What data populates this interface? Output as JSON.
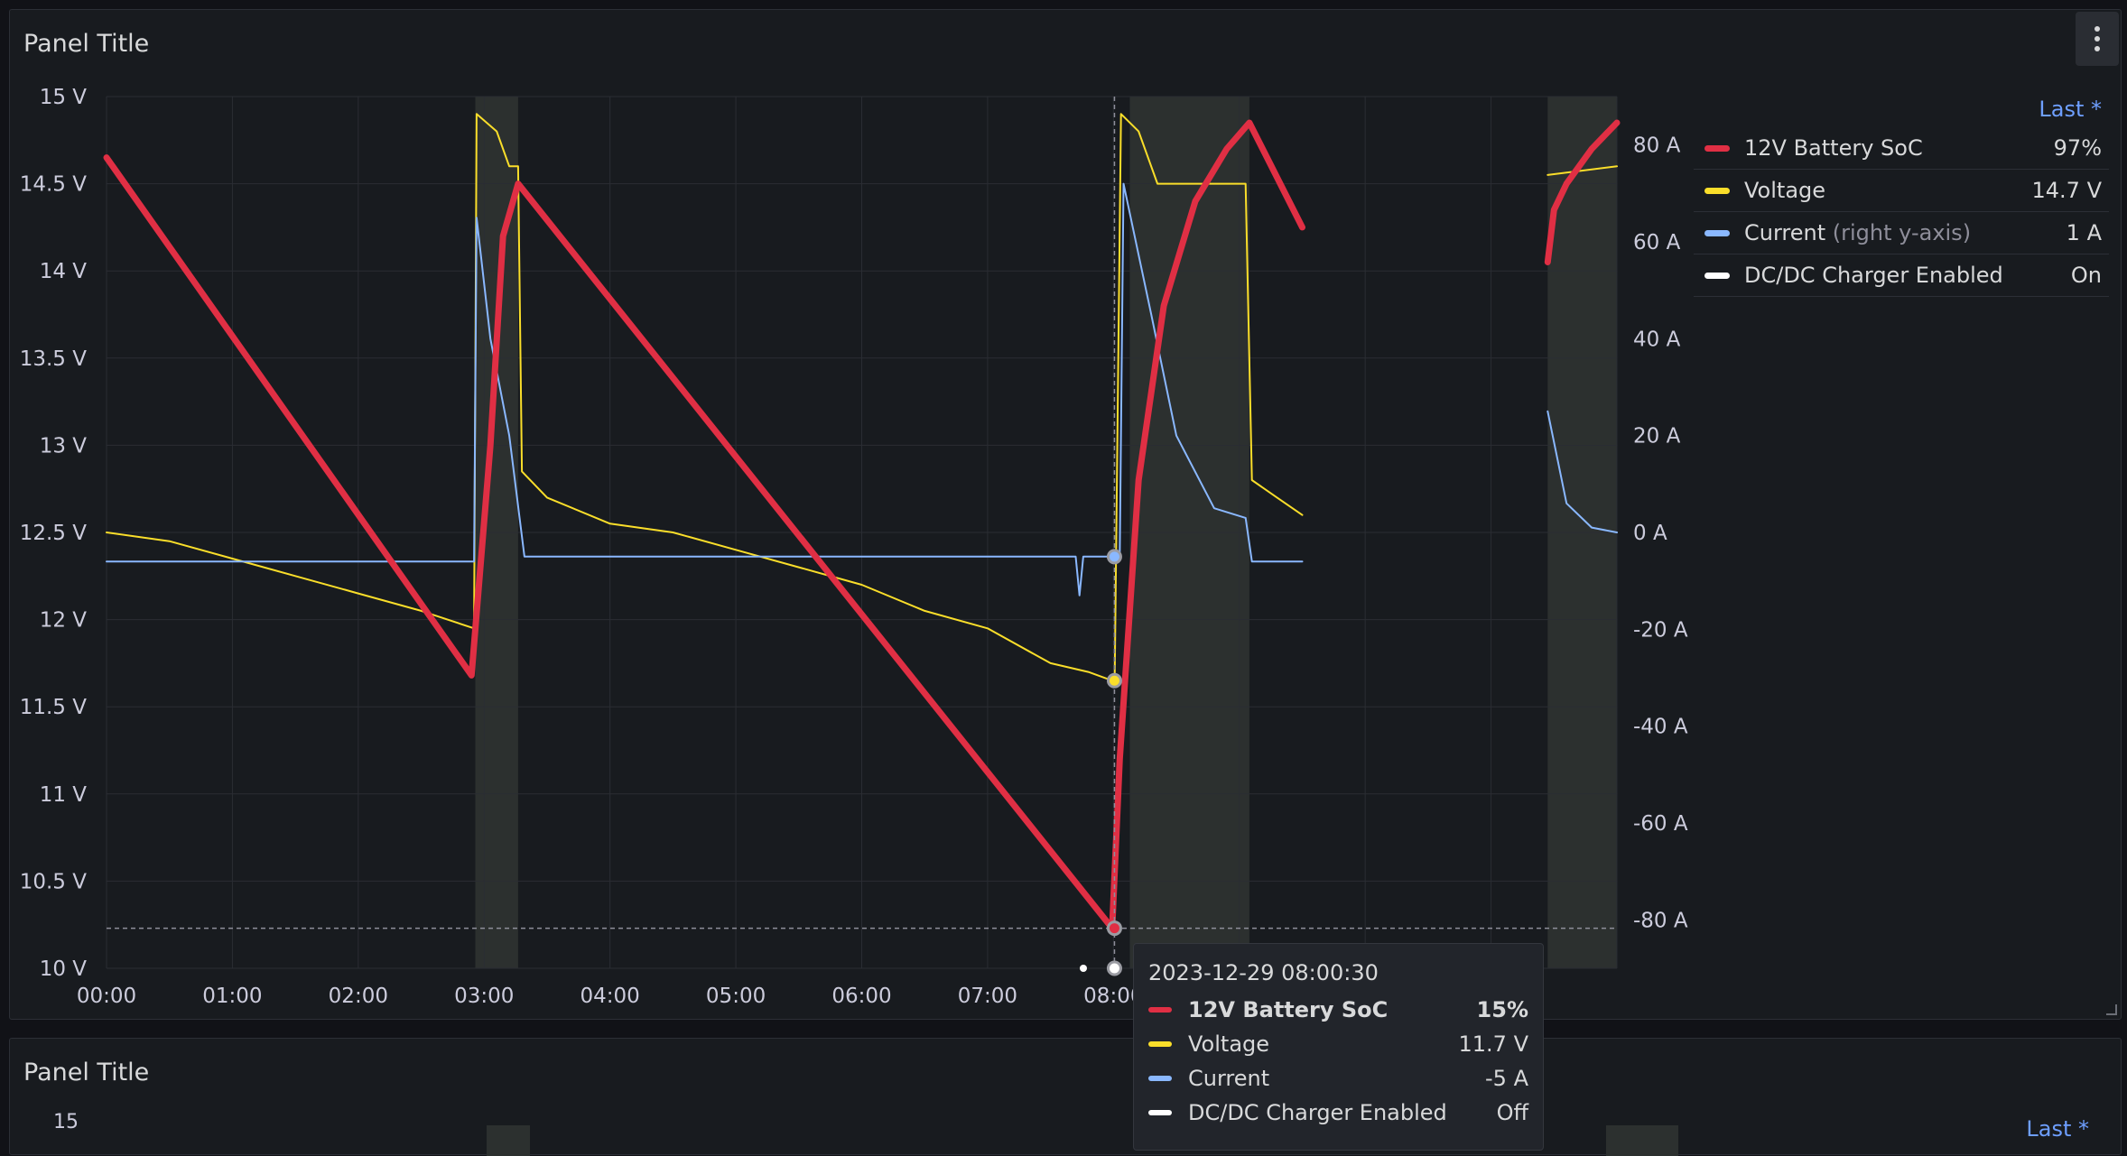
{
  "panels": [
    {
      "title": "Panel Title",
      "legend": {
        "header": "Last *",
        "items": [
          {
            "name": "12V Battery SoC",
            "note": "",
            "value": "97%",
            "color": "#e02f44"
          },
          {
            "name": "Voltage",
            "note": "",
            "value": "14.7 V",
            "color": "#fade2a"
          },
          {
            "name": "Current",
            "note": "(right y-axis)",
            "value": "1 A",
            "color": "#8ab8ff"
          },
          {
            "name": "DC/DC Charger Enabled",
            "note": "",
            "value": "On",
            "color": "#ffffff"
          }
        ]
      },
      "tooltip": {
        "time": "2023-12-29 08:00:30",
        "rows": [
          {
            "name": "12V Battery SoC",
            "value": "15%",
            "bold": true
          },
          {
            "name": "Voltage",
            "value": "11.7 V",
            "bold": false
          },
          {
            "name": "Current",
            "value": "-5 A",
            "bold": false
          },
          {
            "name": "DC/DC Charger Enabled",
            "value": "Off",
            "bold": false
          }
        ]
      }
    },
    {
      "title": "Panel Title",
      "first_tick": "15",
      "legend_header": "Last *"
    }
  ],
  "chart_data": {
    "type": "line",
    "x_ticks": [
      "00:00",
      "01:00",
      "02:00",
      "03:00",
      "04:00",
      "05:00",
      "06:00",
      "07:00",
      "08:00"
    ],
    "x_range_hours": [
      0,
      12
    ],
    "y_left": {
      "unit": "V",
      "range": [
        10,
        15
      ],
      "ticks": [
        "10 V",
        "10.5 V",
        "11 V",
        "11.5 V",
        "12 V",
        "12.5 V",
        "13 V",
        "13.5 V",
        "14 V",
        "14.5 V",
        "15 V"
      ]
    },
    "y_right": {
      "unit": "A",
      "range": [
        -90,
        90
      ],
      "ticks": [
        "-80 A",
        "-60 A",
        "-40 A",
        "-20 A",
        "0 A",
        "20 A",
        "40 A",
        "60 A",
        "80 A"
      ]
    },
    "charger_enabled_hours": [
      [
        2.93,
        3.27
      ],
      [
        8.13,
        9.08
      ],
      [
        11.45,
        12
      ]
    ],
    "cursor_hour": 8.008,
    "series": [
      {
        "name": "12V Battery SoC",
        "axis": "left_scaled",
        "color": "#e02f44",
        "segments": [
          [
            [
              0,
              14.65
            ],
            [
              2.9,
              11.68
            ],
            [
              3.05,
              13.0
            ],
            [
              3.15,
              14.2
            ],
            [
              3.27,
              14.5
            ],
            [
              7.99,
              10.23
            ],
            [
              8.05,
              11.2
            ],
            [
              8.2,
              12.8
            ],
            [
              8.4,
              13.8
            ],
            [
              8.65,
              14.4
            ],
            [
              8.9,
              14.7
            ],
            [
              9.08,
              14.85
            ],
            [
              9.5,
              14.25
            ]
          ],
          [
            [
              11.45,
              14.05
            ],
            [
              11.5,
              14.35
            ],
            [
              11.6,
              14.5
            ],
            [
              11.8,
              14.7
            ],
            [
              12,
              14.85
            ]
          ]
        ]
      },
      {
        "name": "Voltage",
        "axis": "left",
        "color": "#fade2a",
        "segments": [
          [
            [
              0,
              12.5
            ],
            [
              0.5,
              12.45
            ],
            [
              1,
              12.35
            ],
            [
              1.5,
              12.25
            ],
            [
              2,
              12.15
            ],
            [
              2.5,
              12.05
            ],
            [
              2.92,
              11.95
            ],
            [
              2.94,
              14.9
            ],
            [
              3.1,
              14.8
            ],
            [
              3.2,
              14.6
            ],
            [
              3.27,
              14.6
            ],
            [
              3.3,
              12.85
            ],
            [
              3.5,
              12.7
            ],
            [
              4,
              12.55
            ],
            [
              4.5,
              12.5
            ],
            [
              5,
              12.4
            ],
            [
              5.5,
              12.3
            ],
            [
              6,
              12.2
            ],
            [
              6.5,
              12.05
            ],
            [
              7,
              11.95
            ],
            [
              7.5,
              11.75
            ],
            [
              7.8,
              11.7
            ],
            [
              7.99,
              11.65
            ],
            [
              8.01,
              11.66
            ],
            [
              8.06,
              14.9
            ],
            [
              8.2,
              14.8
            ],
            [
              8.35,
              14.5
            ],
            [
              9.05,
              14.5
            ],
            [
              9.1,
              12.8
            ],
            [
              9.3,
              12.7
            ],
            [
              9.5,
              12.6
            ]
          ],
          [
            [
              11.45,
              14.55
            ],
            [
              12,
              14.6
            ]
          ]
        ]
      },
      {
        "name": "Current",
        "axis": "right",
        "color": "#8ab8ff",
        "segments": [
          [
            [
              0,
              -6
            ],
            [
              2.92,
              -6
            ],
            [
              2.94,
              65
            ],
            [
              3.05,
              40
            ],
            [
              3.2,
              20
            ],
            [
              3.32,
              -5
            ],
            [
              7.7,
              -5
            ],
            [
              7.73,
              -13
            ],
            [
              7.76,
              -5
            ],
            [
              8.05,
              -5
            ],
            [
              8.08,
              72
            ],
            [
              8.3,
              45
            ],
            [
              8.5,
              20
            ],
            [
              8.8,
              5
            ],
            [
              9.05,
              3
            ],
            [
              9.1,
              -6
            ],
            [
              9.2,
              -6
            ],
            [
              9.5,
              -6
            ]
          ],
          [
            [
              11.45,
              25
            ],
            [
              11.6,
              6
            ],
            [
              11.8,
              1
            ],
            [
              12,
              0
            ]
          ]
        ]
      }
    ]
  }
}
